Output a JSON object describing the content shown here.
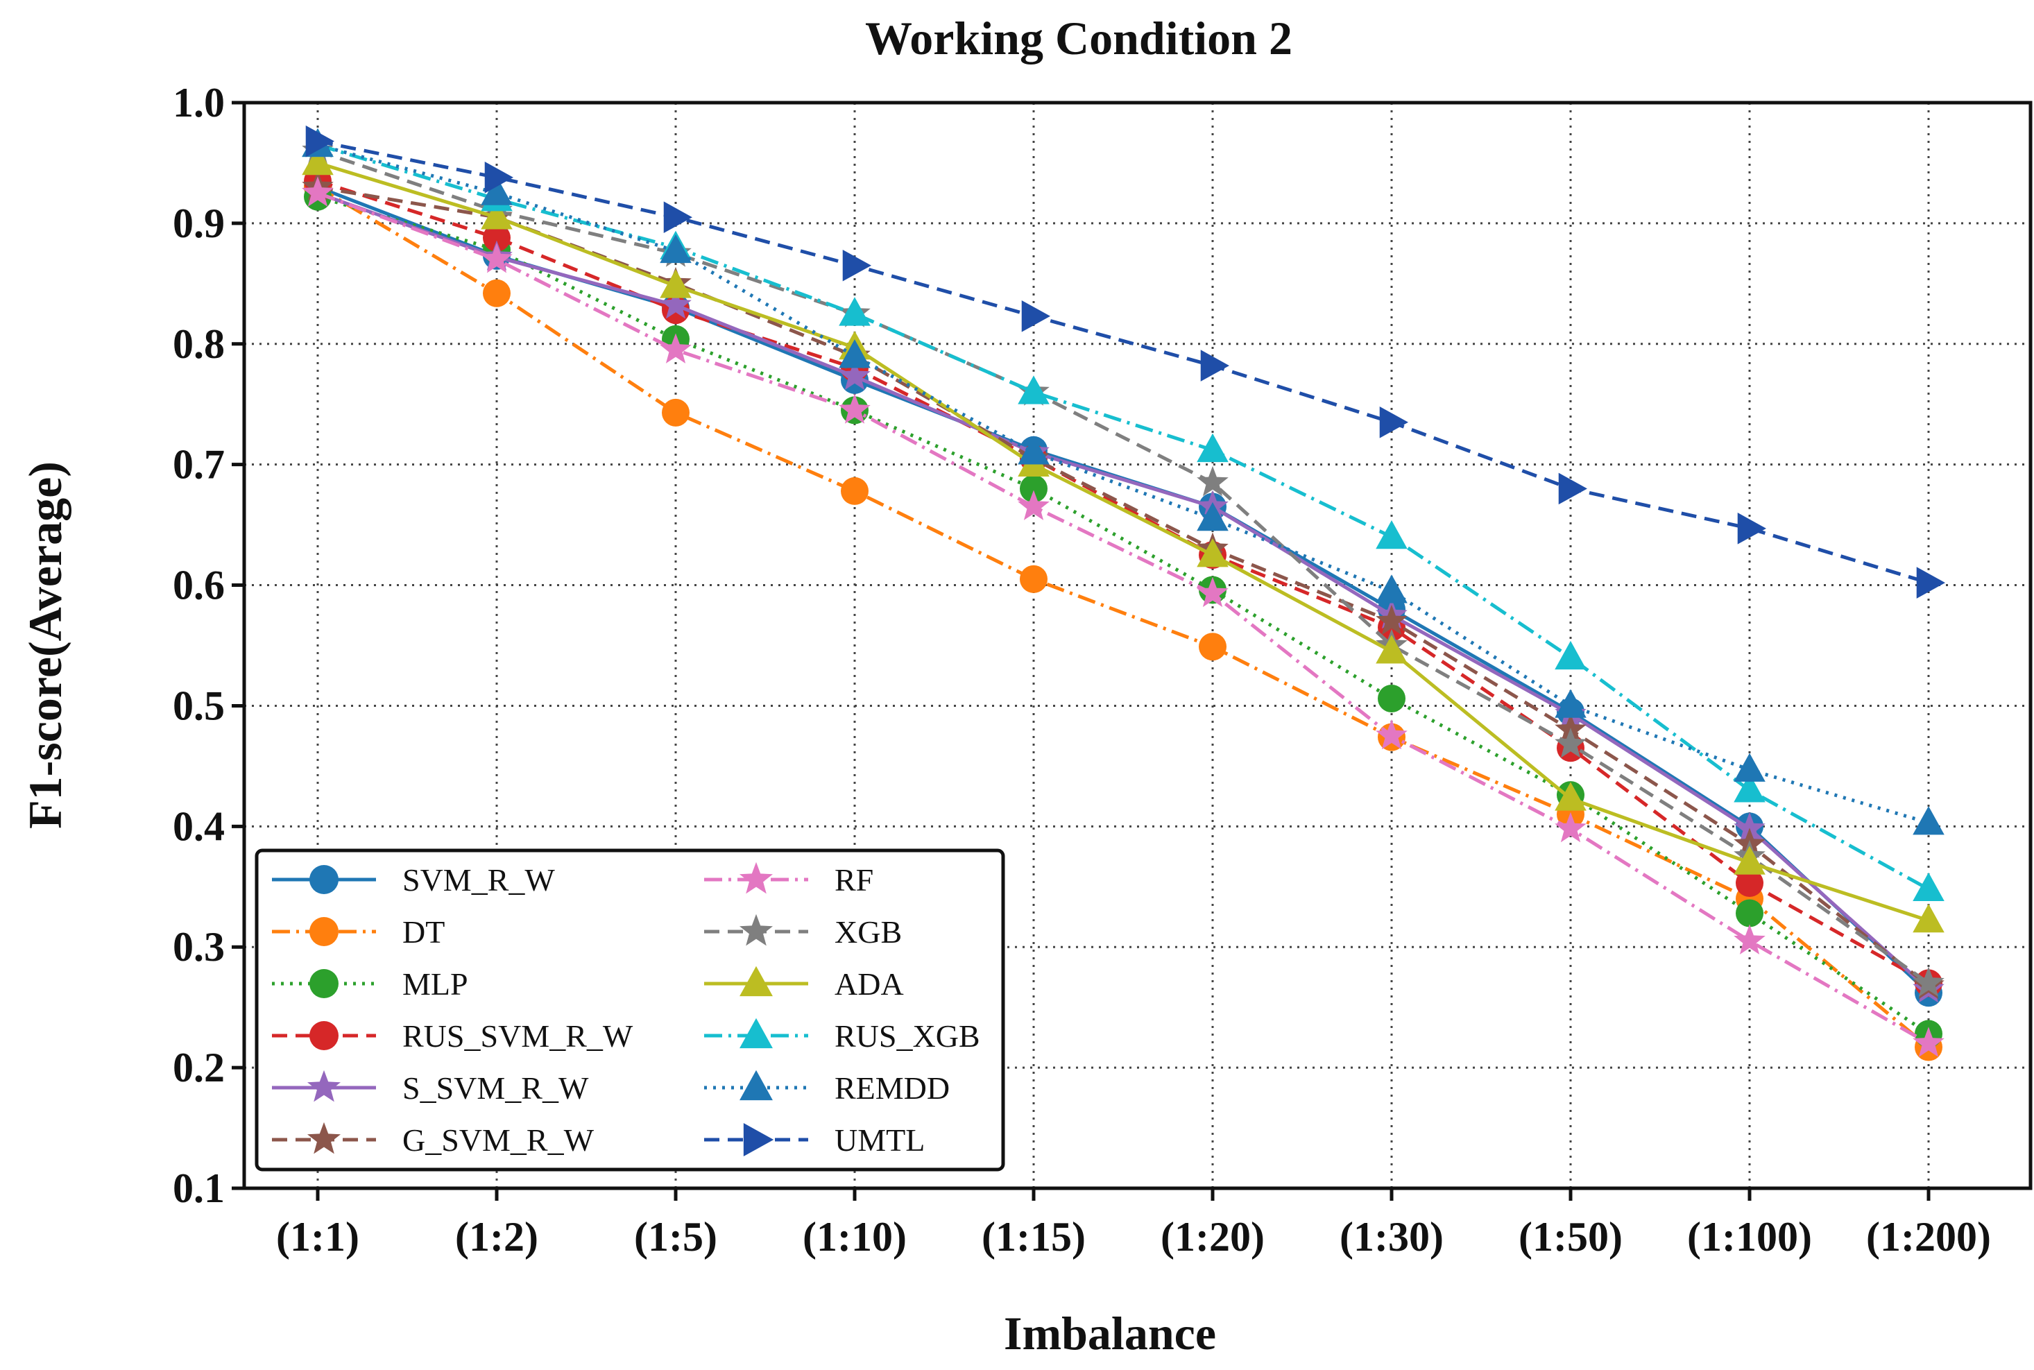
{
  "chart_data": {
    "type": "line",
    "title": "Working Condition 2",
    "xlabel": "Imbalance",
    "ylabel": "F1-score(Average)",
    "ylim": [
      0.1,
      1.0
    ],
    "yticks": [
      "0.1",
      "0.2",
      "0.3",
      "0.4",
      "0.5",
      "0.6",
      "0.7",
      "0.8",
      "0.9",
      "1.0"
    ],
    "grid": true,
    "legend_position": "bottom-left",
    "categories": [
      "(1:1)",
      "(1:2)",
      "(1:5)",
      "(1:10)",
      "(1:15)",
      "(1:20)",
      "(1:30)",
      "(1:50)",
      "(1:100)",
      "(1:200)"
    ],
    "series": [
      {
        "name": "SVM_R_W",
        "color": "#1f77b4",
        "marker": "circle",
        "dash": "solid",
        "values": [
          0.93,
          0.873,
          0.83,
          0.77,
          0.712,
          0.665,
          0.58,
          0.495,
          0.4,
          0.262
        ]
      },
      {
        "name": "DT",
        "color": "#ff7f0e",
        "marker": "circle",
        "dash": "dashdot",
        "values": [
          0.93,
          0.842,
          0.743,
          0.678,
          0.605,
          0.549,
          0.474,
          0.41,
          0.34,
          0.217
        ]
      },
      {
        "name": "MLP",
        "color": "#2ca02c",
        "marker": "circle",
        "dash": "dotted",
        "values": [
          0.922,
          0.878,
          0.804,
          0.745,
          0.68,
          0.596,
          0.506,
          0.426,
          0.328,
          0.228
        ]
      },
      {
        "name": "RUS_SVM_R_W",
        "color": "#d62728",
        "marker": "circle",
        "dash": "dashed",
        "values": [
          0.935,
          0.888,
          0.828,
          0.78,
          0.705,
          0.625,
          0.565,
          0.465,
          0.353,
          0.27
        ]
      },
      {
        "name": "S_SVM_R_W",
        "color": "#9467bd",
        "marker": "star",
        "dash": "solid",
        "values": [
          0.925,
          0.872,
          0.832,
          0.773,
          0.71,
          0.665,
          0.575,
          0.493,
          0.398,
          0.265
        ]
      },
      {
        "name": "G_SVM_R_W",
        "color": "#8c564b",
        "marker": "star",
        "dash": "dashed",
        "values": [
          0.93,
          0.905,
          0.85,
          0.79,
          0.705,
          0.63,
          0.57,
          0.48,
          0.385,
          0.268
        ]
      },
      {
        "name": "RF",
        "color": "#e377c2",
        "marker": "star",
        "dash": "dashdot",
        "values": [
          0.925,
          0.87,
          0.795,
          0.745,
          0.665,
          0.593,
          0.475,
          0.398,
          0.305,
          0.22
        ]
      },
      {
        "name": "XGB",
        "color": "#7f7f7f",
        "marker": "star",
        "dash": "dashed",
        "values": [
          0.96,
          0.91,
          0.875,
          0.825,
          0.76,
          0.685,
          0.55,
          0.468,
          0.375,
          0.27
        ]
      },
      {
        "name": "ADA",
        "color": "#bcbd22",
        "marker": "triangle-up",
        "dash": "solid",
        "values": [
          0.95,
          0.905,
          0.848,
          0.797,
          0.7,
          0.625,
          0.545,
          0.423,
          0.37,
          0.322
        ]
      },
      {
        "name": "RUS_XGB",
        "color": "#17becf",
        "marker": "triangle-up",
        "dash": "dashdot",
        "values": [
          0.965,
          0.92,
          0.88,
          0.825,
          0.76,
          0.712,
          0.64,
          0.54,
          0.43,
          0.348
        ]
      },
      {
        "name": "REMDD",
        "color": "#1f77b4",
        "marker": "triangle-up",
        "dash": "dotted",
        "values": [
          0.965,
          0.925,
          0.877,
          0.79,
          0.71,
          0.655,
          0.595,
          0.5,
          0.447,
          0.403
        ]
      },
      {
        "name": "UMTL",
        "color": "#1f4ea8",
        "marker": "triangle-right",
        "dash": "dashed",
        "values": [
          0.968,
          0.938,
          0.905,
          0.865,
          0.823,
          0.782,
          0.735,
          0.68,
          0.647,
          0.602
        ]
      }
    ]
  }
}
